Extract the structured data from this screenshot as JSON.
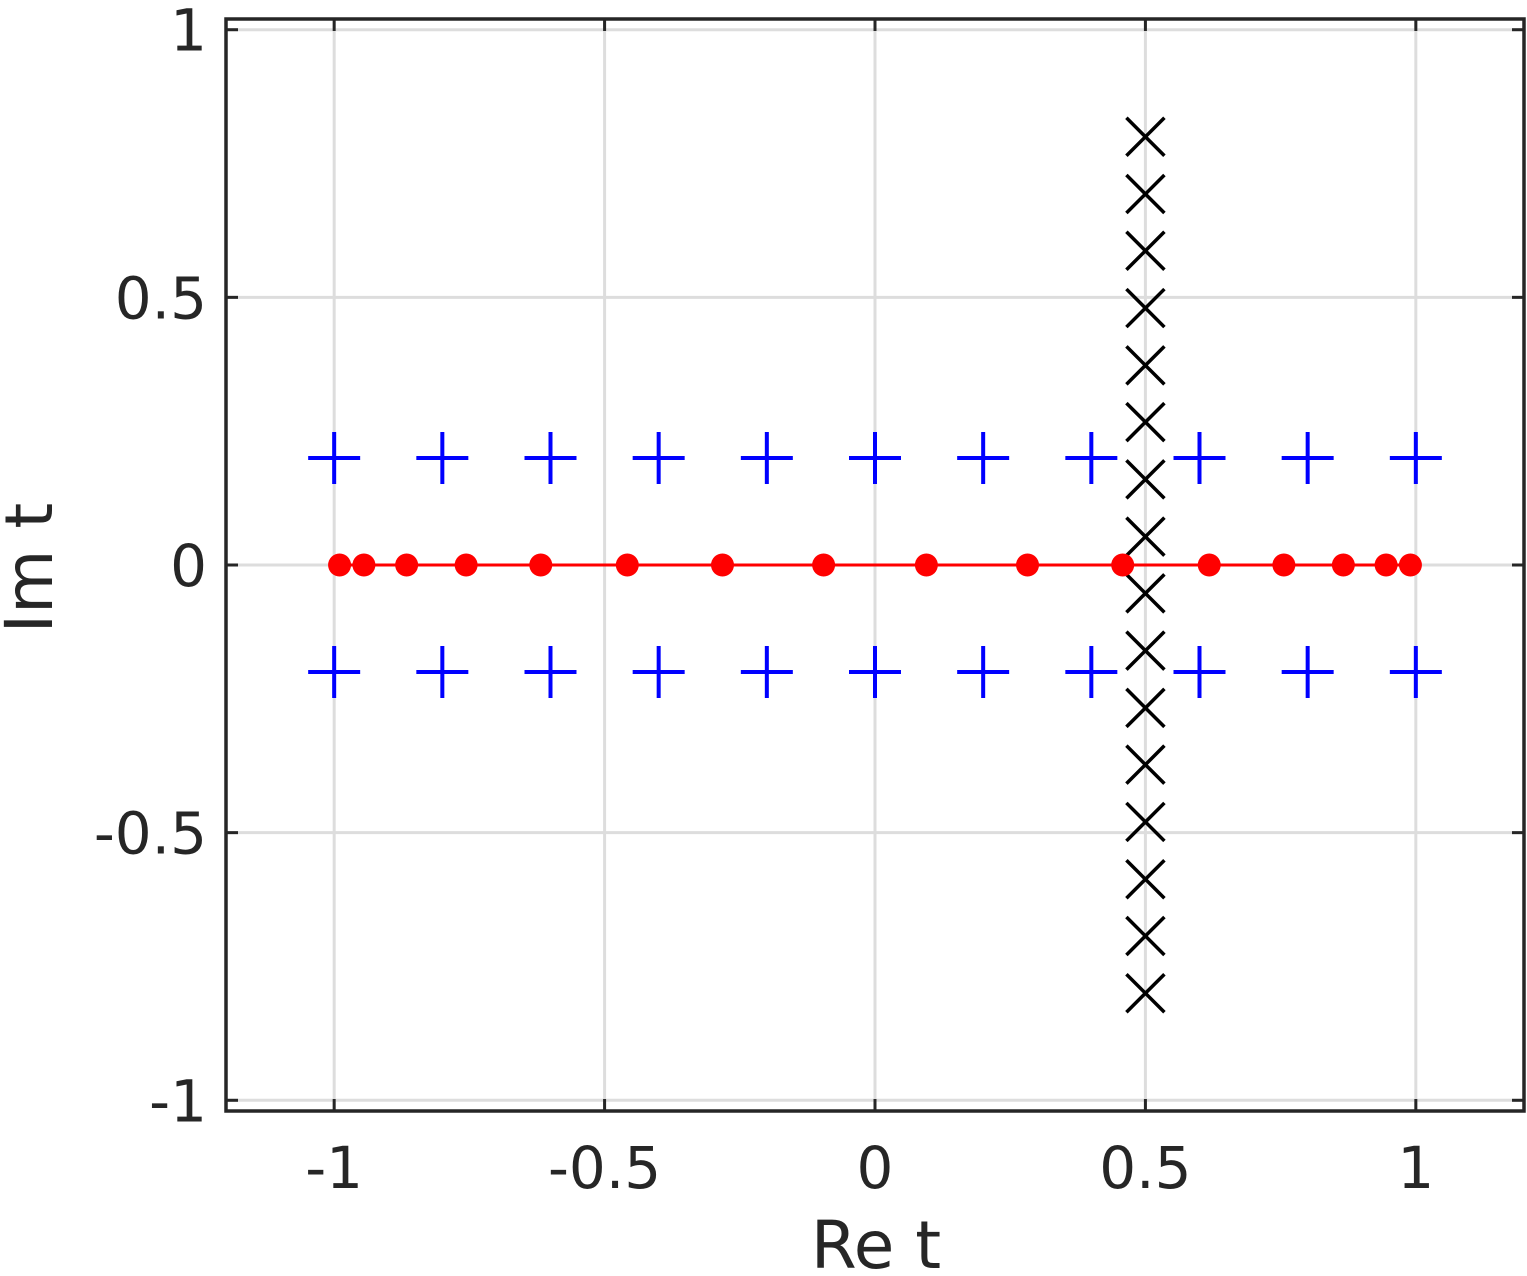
{
  "chart_data": {
    "type": "scatter",
    "title": "",
    "xlabel": "Re t",
    "ylabel": "Im t",
    "xlim": [
      -1.2,
      1.2
    ],
    "ylim": [
      -1.02,
      1.02
    ],
    "grid": true,
    "legend": "none",
    "xticks": [
      -1,
      -0.5,
      0,
      0.5,
      1
    ],
    "yticks": [
      -1,
      -0.5,
      0,
      0.5,
      1
    ],
    "xtick_labels": [
      "-1",
      "-0.5",
      "0",
      "0.5",
      "1"
    ],
    "ytick_labels": [
      "-1",
      "-0.5",
      "0",
      "0.5",
      "1"
    ],
    "series": [
      {
        "marker": "plus",
        "color": "#0000ff",
        "points": [
          [
            -1.0,
            0.2
          ],
          [
            -0.8,
            0.2
          ],
          [
            -0.6,
            0.2
          ],
          [
            -0.4,
            0.2
          ],
          [
            -0.2,
            0.2
          ],
          [
            0.0,
            0.2
          ],
          [
            0.2,
            0.2
          ],
          [
            0.4,
            0.2
          ],
          [
            0.6,
            0.2
          ],
          [
            0.8,
            0.2
          ],
          [
            1.0,
            0.2
          ],
          [
            -1.0,
            -0.2
          ],
          [
            -0.8,
            -0.2
          ],
          [
            -0.6,
            -0.2
          ],
          [
            -0.4,
            -0.2
          ],
          [
            -0.2,
            -0.2
          ],
          [
            0.0,
            -0.2
          ],
          [
            0.2,
            -0.2
          ],
          [
            0.4,
            -0.2
          ],
          [
            0.6,
            -0.2
          ],
          [
            0.8,
            -0.2
          ],
          [
            1.0,
            -0.2
          ]
        ]
      },
      {
        "marker": "x",
        "color": "#000000",
        "points": [
          [
            0.5,
            0.8
          ],
          [
            0.5,
            0.693
          ],
          [
            0.5,
            0.587
          ],
          [
            0.5,
            0.48
          ],
          [
            0.5,
            0.373
          ],
          [
            0.5,
            0.267
          ],
          [
            0.5,
            0.16
          ],
          [
            0.5,
            0.053
          ],
          [
            0.5,
            -0.053
          ],
          [
            0.5,
            -0.16
          ],
          [
            0.5,
            -0.267
          ],
          [
            0.5,
            -0.373
          ],
          [
            0.5,
            -0.48
          ],
          [
            0.5,
            -0.587
          ],
          [
            0.5,
            -0.693
          ],
          [
            0.5,
            -0.8
          ]
        ]
      },
      {
        "marker": "dot",
        "line": true,
        "color": "#ff0000",
        "points": [
          [
            -0.99,
            0
          ],
          [
            -0.945,
            0
          ],
          [
            -0.866,
            0
          ],
          [
            -0.756,
            0
          ],
          [
            -0.618,
            0
          ],
          [
            -0.458,
            0
          ],
          [
            -0.282,
            0
          ],
          [
            -0.095,
            0
          ],
          [
            0.095,
            0
          ],
          [
            0.282,
            0
          ],
          [
            0.458,
            0
          ],
          [
            0.618,
            0
          ],
          [
            0.756,
            0
          ],
          [
            0.866,
            0
          ],
          [
            0.945,
            0
          ],
          [
            0.99,
            0
          ]
        ]
      }
    ]
  },
  "colors": {
    "axes": "#262626",
    "grid": "#dddddd",
    "background": "#ffffff"
  }
}
